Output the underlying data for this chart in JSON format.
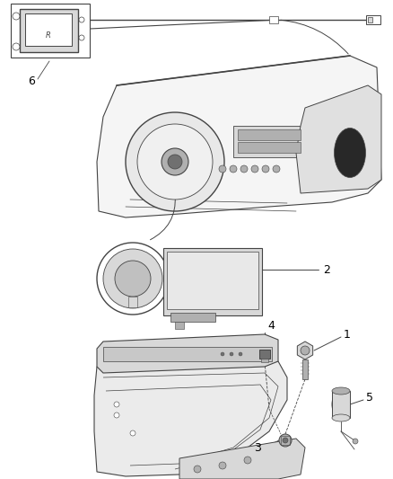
{
  "background_color": "#ffffff",
  "figsize": [
    4.38,
    5.33
  ],
  "dpi": 100,
  "line_color": "#444444",
  "light_gray": "#d8d8d8",
  "mid_gray": "#b0b0b0",
  "dark_gray": "#707070",
  "very_dark": "#202020"
}
